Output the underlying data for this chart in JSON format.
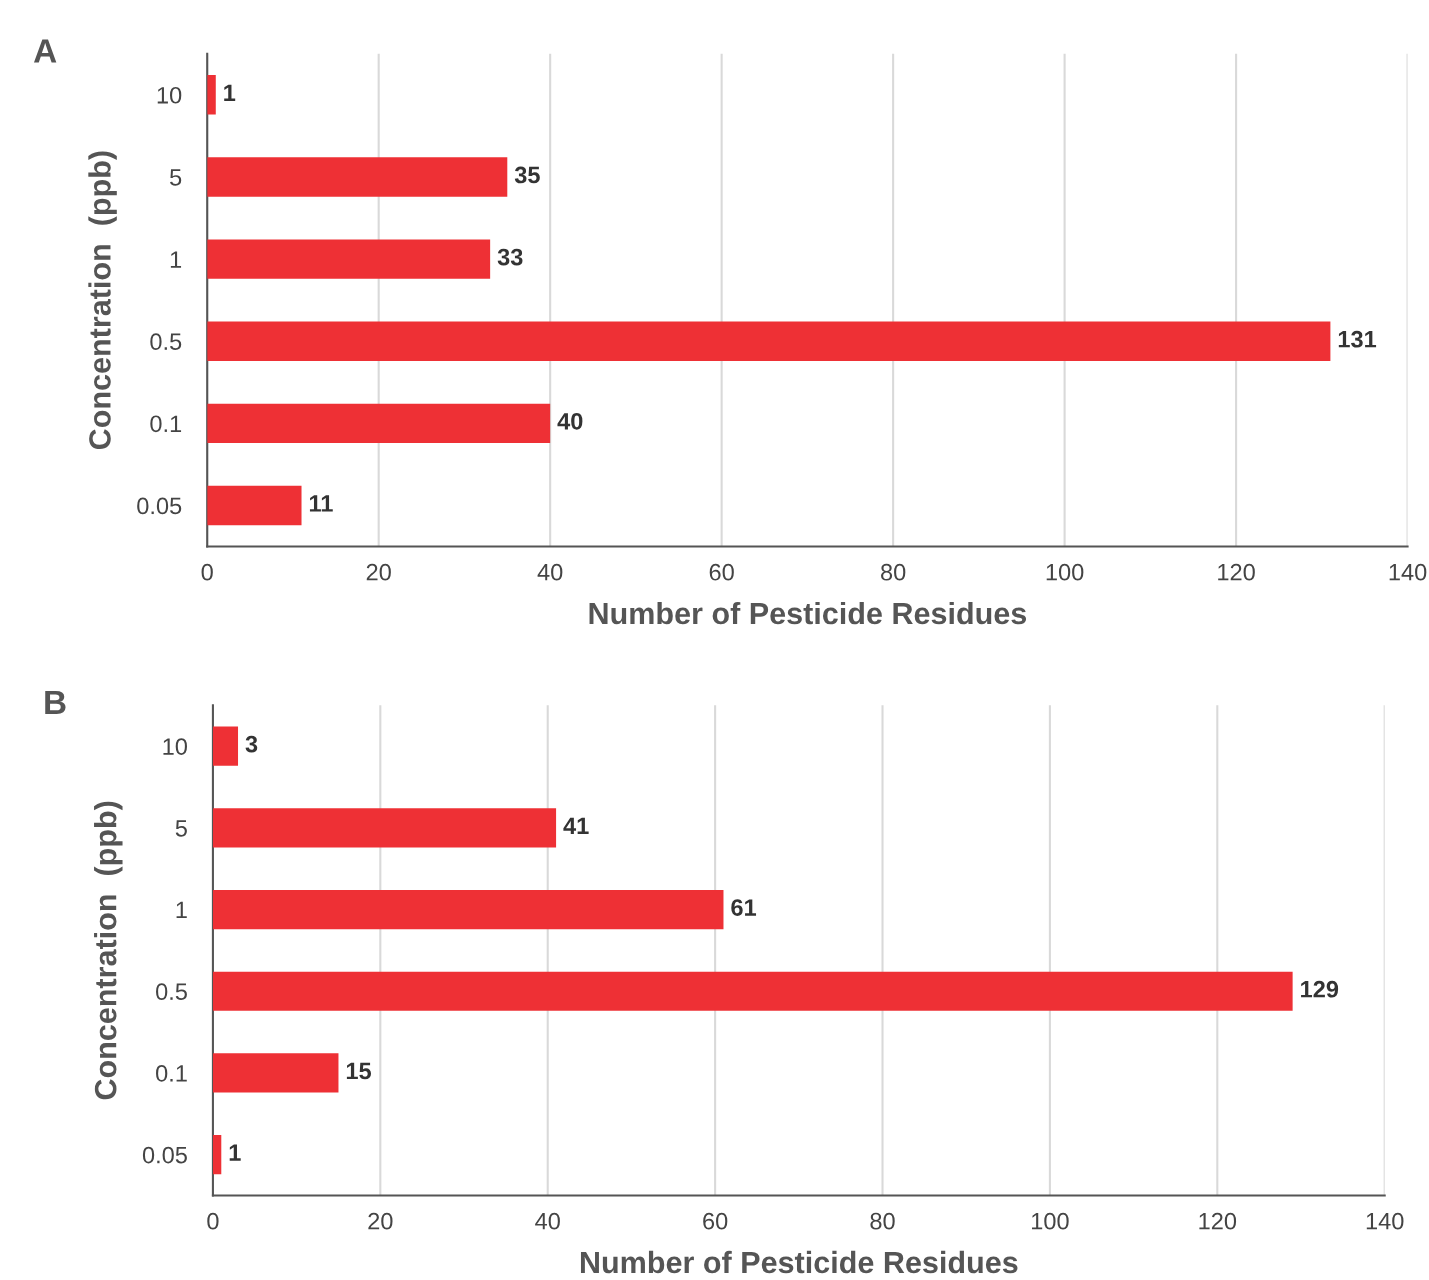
{
  "chart_data": [
    {
      "type": "bar",
      "orientation": "horizontal",
      "title": "A",
      "xlabel": "Number of Pesticide Residues",
      "ylabel": "Concentration  (ppb)",
      "categories": [
        "10",
        "5",
        "1",
        "0.5",
        "0.1",
        "0.05"
      ],
      "values": [
        1,
        35,
        33,
        131,
        40,
        11
      ],
      "color": "#ee3035",
      "xlim": [
        0,
        140
      ],
      "xticks": [
        0,
        20,
        40,
        60,
        80,
        100,
        120,
        140
      ],
      "grid": "x",
      "data_labels": true
    },
    {
      "type": "bar",
      "orientation": "horizontal",
      "title": "B",
      "xlabel": "Number of Pesticide Residues",
      "ylabel": "Concentration  (ppb)",
      "categories": [
        "10",
        "5",
        "1",
        "0.5",
        "0.1",
        "0.05"
      ],
      "values": [
        3,
        41,
        61,
        129,
        15,
        1
      ],
      "color": "#ee3035",
      "xlim": [
        0,
        140
      ],
      "xticks": [
        0,
        20,
        40,
        60,
        80,
        100,
        120,
        140
      ],
      "grid": "x",
      "data_labels": true
    }
  ]
}
